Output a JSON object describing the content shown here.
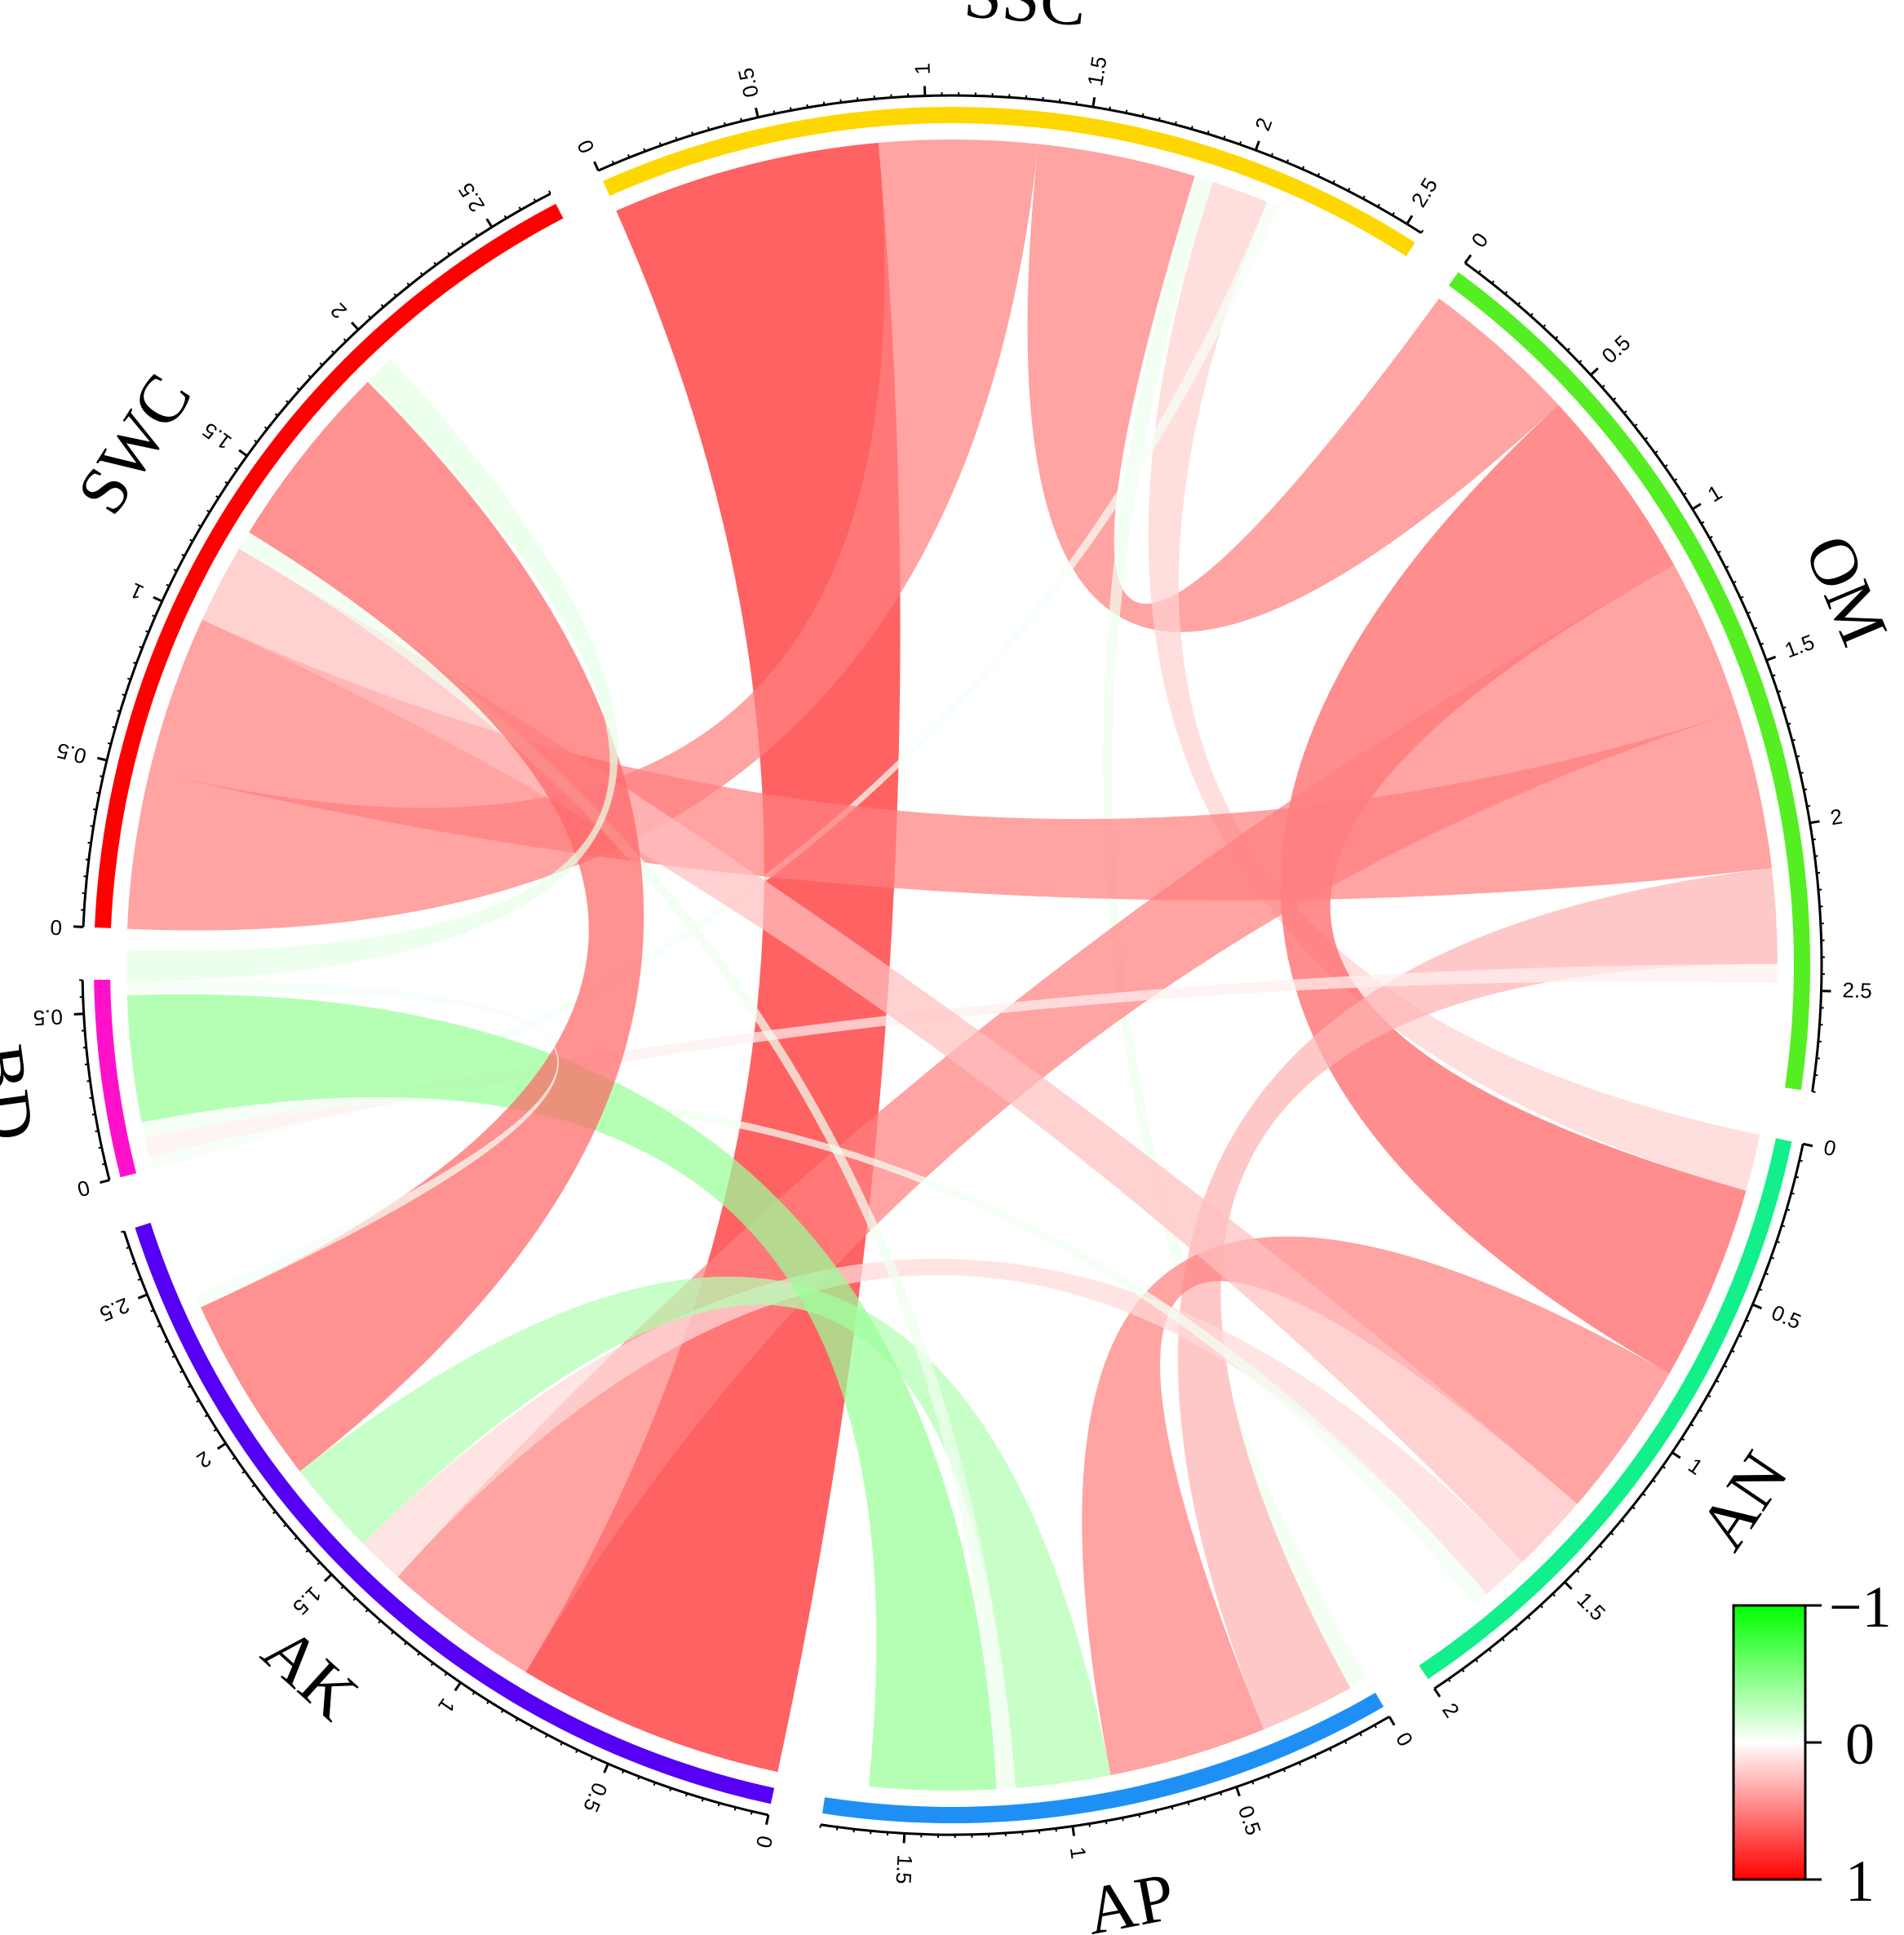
{
  "chart_data": {
    "type": "chord",
    "sectors": [
      {
        "name": "SSC",
        "color": "#FFD700",
        "total": 2.55,
        "ticks": [
          "0",
          "0.5",
          "1",
          "1.5",
          "2",
          "2.5"
        ]
      },
      {
        "name": "OM",
        "color": "#55EE22",
        "total": 2.8,
        "ticks": [
          "0",
          "0.5",
          "1",
          "1.5",
          "2",
          "2.5"
        ]
      },
      {
        "name": "AN",
        "color": "#11F08A",
        "total": 2.0,
        "ticks": [
          "0",
          "0.5",
          "1",
          "1.5",
          "2"
        ]
      },
      {
        "name": "AP",
        "color": "#1E90F5",
        "total": 1.75,
        "ticks": [
          "0",
          "0.5",
          "1",
          "1.5"
        ]
      },
      {
        "name": "AK",
        "color": "#5500F5",
        "total": 2.7,
        "ticks": [
          "0",
          "0.5",
          "1",
          "1.5",
          "2",
          "2.5"
        ]
      },
      {
        "name": "BD",
        "color": "#FF11CC",
        "total": 0.6,
        "ticks": [
          "0",
          "0.5"
        ]
      },
      {
        "name": "SWC",
        "color": "#FF0000",
        "total": 2.7,
        "ticks": [
          "0",
          "0.5",
          "1",
          "1.5",
          "2",
          "2.5"
        ]
      }
    ],
    "links": [
      {
        "source": "SSC",
        "target": "AK",
        "value": 0.85
      },
      {
        "source": "SSC",
        "target": "SWC",
        "value": 0.5
      },
      {
        "source": "SSC",
        "target": "OM",
        "value": 0.5
      },
      {
        "source": "SSC",
        "target": "AP",
        "value": -0.06
      },
      {
        "source": "SSC",
        "target": "AN",
        "value": 0.18
      },
      {
        "source": "SSC",
        "target": "BD",
        "value": -0.04
      },
      {
        "source": "OM",
        "target": "AN",
        "value": 0.62
      },
      {
        "source": "OM",
        "target": "AK",
        "value": 0.5
      },
      {
        "source": "OM",
        "target": "SWC",
        "value": 0.5
      },
      {
        "source": "OM",
        "target": "AP",
        "value": 0.3
      },
      {
        "source": "OM",
        "target": "BD",
        "value": 0.06
      },
      {
        "source": "AN",
        "target": "AP",
        "value": 0.5
      },
      {
        "source": "AN",
        "target": "SWC",
        "value": 0.25
      },
      {
        "source": "AN",
        "target": "AK",
        "value": 0.15
      },
      {
        "source": "AN",
        "target": "BD",
        "value": -0.05
      },
      {
        "source": "AP",
        "target": "AK",
        "value": -0.3
      },
      {
        "source": "AP",
        "target": "SWC",
        "value": -0.06
      },
      {
        "source": "AP",
        "target": "BD",
        "value": -0.4
      },
      {
        "source": "AK",
        "target": "SWC",
        "value": 0.6
      },
      {
        "source": "AK",
        "target": "BD",
        "value": -0.04
      },
      {
        "source": "SWC",
        "target": "BD",
        "value": -0.1
      }
    ],
    "colorbar": {
      "labels": [
        "−1",
        "0",
        "1"
      ],
      "min_color": "#00FF00",
      "mid_color": "#FFFFFF",
      "max_color": "#FF0000"
    }
  }
}
